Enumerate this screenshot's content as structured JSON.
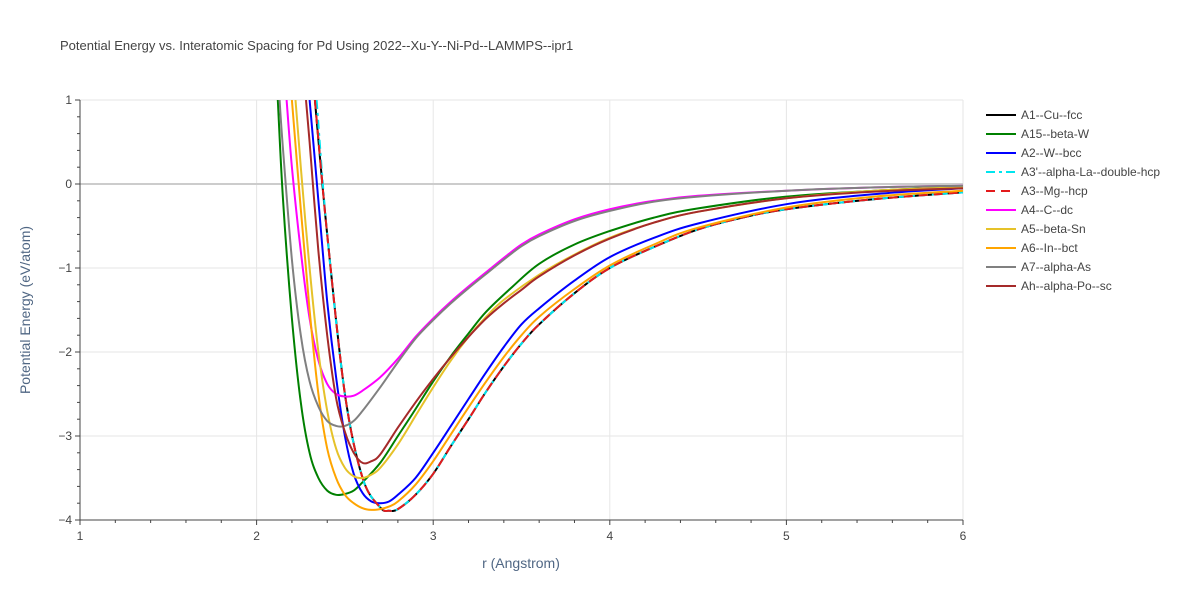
{
  "chart_data": {
    "type": "line",
    "title": "Potential Energy vs. Interatomic Spacing for Pd Using 2022--Xu-Y--Ni-Pd--LAMMPS--ipr1",
    "xlabel": "r (Angstrom)",
    "ylabel": "Potential Energy (eV/atom)",
    "xlim": [
      1,
      6
    ],
    "ylim": [
      -4,
      1
    ],
    "xticks": [
      1,
      2,
      3,
      4,
      5,
      6
    ],
    "yticks": [
      1,
      0,
      -1,
      -2,
      -3,
      -4
    ],
    "ytick_labels": [
      "1",
      "0",
      "−1",
      "−2",
      "−3",
      "−4"
    ],
    "grid": true,
    "legend_position": "right",
    "series": [
      {
        "name": "A1--Cu--fcc",
        "color": "#000000",
        "dash": "solid",
        "x": [
          2.33,
          2.4,
          2.5,
          2.6,
          2.7,
          2.75,
          2.8,
          2.9,
          3.0,
          3.1,
          3.2,
          3.3,
          3.4,
          3.5,
          3.6,
          3.8,
          4.0,
          4.25,
          4.5,
          4.75,
          5.0,
          5.5,
          6.0
        ],
        "y": [
          1.0,
          -0.6,
          -2.5,
          -3.5,
          -3.85,
          -3.89,
          -3.87,
          -3.7,
          -3.45,
          -3.12,
          -2.8,
          -2.47,
          -2.17,
          -1.9,
          -1.67,
          -1.3,
          -1.0,
          -0.75,
          -0.54,
          -0.4,
          -0.3,
          -0.18,
          -0.1
        ]
      },
      {
        "name": "A15--beta-W",
        "color": "#008000",
        "dash": "solid",
        "x": [
          2.12,
          2.15,
          2.2,
          2.25,
          2.3,
          2.35,
          2.4,
          2.45,
          2.5,
          2.55,
          2.6,
          2.7,
          2.8,
          2.9,
          3.0,
          3.1,
          3.2,
          3.3,
          3.45,
          3.6,
          3.8,
          4.0,
          4.25,
          4.5,
          5.0,
          5.5,
          6.0
        ],
        "y": [
          1.0,
          -0.2,
          -1.6,
          -2.6,
          -3.2,
          -3.5,
          -3.65,
          -3.7,
          -3.69,
          -3.65,
          -3.55,
          -3.32,
          -3.0,
          -2.68,
          -2.35,
          -2.05,
          -1.78,
          -1.52,
          -1.22,
          -0.95,
          -0.72,
          -0.56,
          -0.4,
          -0.29,
          -0.15,
          -0.08,
          -0.03
        ]
      },
      {
        "name": "A2--W--bcc",
        "color": "#0000ff",
        "dash": "solid",
        "x": [
          2.3,
          2.35,
          2.4,
          2.45,
          2.5,
          2.55,
          2.6,
          2.65,
          2.7,
          2.75,
          2.8,
          2.9,
          3.0,
          3.1,
          3.2,
          3.3,
          3.4,
          3.5,
          3.6,
          3.8,
          4.0,
          4.25,
          4.5,
          5.0,
          5.5,
          6.0
        ],
        "y": [
          1.0,
          -0.2,
          -1.4,
          -2.3,
          -3.0,
          -3.45,
          -3.68,
          -3.78,
          -3.8,
          -3.78,
          -3.7,
          -3.5,
          -3.2,
          -2.88,
          -2.56,
          -2.24,
          -1.94,
          -1.67,
          -1.48,
          -1.15,
          -0.87,
          -0.64,
          -0.47,
          -0.24,
          -0.12,
          -0.05
        ]
      },
      {
        "name": "A3'--alpha-La--double-hcp",
        "color": "#00e5ee",
        "dash": "dashdot",
        "x": [
          2.34,
          2.4,
          2.5,
          2.6,
          2.7,
          2.75,
          2.8,
          2.9,
          3.0,
          3.1,
          3.2,
          3.3,
          3.4,
          3.5,
          3.6,
          3.8,
          4.0,
          4.25,
          4.5,
          4.75,
          5.0,
          5.5,
          6.0
        ],
        "y": [
          1.0,
          -0.6,
          -2.5,
          -3.5,
          -3.85,
          -3.89,
          -3.87,
          -3.7,
          -3.45,
          -3.12,
          -2.8,
          -2.47,
          -2.17,
          -1.9,
          -1.67,
          -1.3,
          -1.0,
          -0.75,
          -0.54,
          -0.4,
          -0.3,
          -0.18,
          -0.1
        ]
      },
      {
        "name": "A3--Mg--hcp",
        "color": "#e31a1c",
        "dash": "dash",
        "x": [
          2.33,
          2.4,
          2.5,
          2.6,
          2.7,
          2.75,
          2.8,
          2.9,
          3.0,
          3.1,
          3.2,
          3.3,
          3.4,
          3.5,
          3.6,
          3.8,
          4.0,
          4.25,
          4.5,
          4.75,
          5.0,
          5.5,
          6.0
        ],
        "y": [
          1.0,
          -0.6,
          -2.5,
          -3.5,
          -3.85,
          -3.89,
          -3.87,
          -3.7,
          -3.45,
          -3.12,
          -2.8,
          -2.47,
          -2.17,
          -1.9,
          -1.67,
          -1.3,
          -1.0,
          -0.75,
          -0.54,
          -0.4,
          -0.3,
          -0.18,
          -0.1
        ]
      },
      {
        "name": "A4--C--dc",
        "color": "#ff00ff",
        "dash": "solid",
        "x": [
          2.17,
          2.2,
          2.25,
          2.3,
          2.35,
          2.4,
          2.45,
          2.5,
          2.55,
          2.6,
          2.7,
          2.8,
          2.9,
          3.0,
          3.1,
          3.2,
          3.3,
          3.4,
          3.5,
          3.6,
          3.8,
          4.0,
          4.25,
          4.5,
          5.0,
          5.5,
          6.0
        ],
        "y": [
          1.0,
          0.2,
          -0.8,
          -1.6,
          -2.1,
          -2.38,
          -2.5,
          -2.53,
          -2.52,
          -2.46,
          -2.3,
          -2.08,
          -1.82,
          -1.6,
          -1.4,
          -1.22,
          -1.05,
          -0.88,
          -0.72,
          -0.6,
          -0.42,
          -0.3,
          -0.2,
          -0.14,
          -0.08,
          -0.04,
          -0.02
        ]
      },
      {
        "name": "A5--beta-Sn",
        "color": "#e6c229",
        "dash": "solid",
        "x": [
          2.22,
          2.25,
          2.3,
          2.35,
          2.4,
          2.45,
          2.5,
          2.55,
          2.6,
          2.65,
          2.7,
          2.8,
          2.9,
          3.0,
          3.1,
          3.2,
          3.3,
          3.4,
          3.6,
          3.8,
          4.0,
          4.25,
          4.5,
          5.0,
          5.5,
          6.0
        ],
        "y": [
          1.0,
          0.2,
          -1.0,
          -2.0,
          -2.7,
          -3.15,
          -3.38,
          -3.48,
          -3.5,
          -3.46,
          -3.38,
          -3.1,
          -2.76,
          -2.42,
          -2.1,
          -1.82,
          -1.58,
          -1.38,
          -1.08,
          -0.84,
          -0.64,
          -0.46,
          -0.33,
          -0.17,
          -0.08,
          -0.04
        ]
      },
      {
        "name": "A6--In--bct",
        "color": "#ffa500",
        "dash": "solid",
        "x": [
          2.2,
          2.25,
          2.3,
          2.35,
          2.4,
          2.45,
          2.5,
          2.55,
          2.6,
          2.65,
          2.7,
          2.75,
          2.8,
          2.9,
          3.0,
          3.1,
          3.2,
          3.3,
          3.4,
          3.5,
          3.6,
          3.8,
          4.0,
          4.25,
          4.5,
          5.0,
          5.5,
          6.0
        ],
        "y": [
          1.0,
          -0.3,
          -1.5,
          -2.5,
          -3.15,
          -3.5,
          -3.7,
          -3.8,
          -3.86,
          -3.88,
          -3.87,
          -3.84,
          -3.78,
          -3.58,
          -3.3,
          -2.98,
          -2.66,
          -2.35,
          -2.06,
          -1.8,
          -1.58,
          -1.25,
          -0.97,
          -0.72,
          -0.52,
          -0.28,
          -0.15,
          -0.08
        ]
      },
      {
        "name": "A7--alpha-As",
        "color": "#808080",
        "dash": "solid",
        "x": [
          2.13,
          2.15,
          2.2,
          2.25,
          2.3,
          2.35,
          2.4,
          2.45,
          2.5,
          2.55,
          2.6,
          2.7,
          2.8,
          2.9,
          3.0,
          3.1,
          3.2,
          3.3,
          3.4,
          3.5,
          3.6,
          3.8,
          4.0,
          4.25,
          4.5,
          5.0,
          5.5,
          6.0
        ],
        "y": [
          1.0,
          0.4,
          -0.9,
          -1.8,
          -2.35,
          -2.65,
          -2.82,
          -2.88,
          -2.88,
          -2.82,
          -2.7,
          -2.42,
          -2.12,
          -1.84,
          -1.62,
          -1.42,
          -1.24,
          -1.07,
          -0.9,
          -0.74,
          -0.62,
          -0.44,
          -0.32,
          -0.21,
          -0.15,
          -0.08,
          -0.04,
          -0.02
        ]
      },
      {
        "name": "Ah--alpha-Po--sc",
        "color": "#a52a2a",
        "dash": "solid",
        "x": [
          2.28,
          2.3,
          2.35,
          2.4,
          2.45,
          2.5,
          2.55,
          2.6,
          2.65,
          2.7,
          2.8,
          2.9,
          3.0,
          3.1,
          3.2,
          3.3,
          3.4,
          3.5,
          3.6,
          3.8,
          4.0,
          4.25,
          4.5,
          5.0,
          5.5,
          6.0
        ],
        "y": [
          1.0,
          0.5,
          -0.8,
          -1.8,
          -2.55,
          -2.95,
          -3.2,
          -3.32,
          -3.3,
          -3.22,
          -2.9,
          -2.6,
          -2.32,
          -2.06,
          -1.82,
          -1.6,
          -1.42,
          -1.26,
          -1.1,
          -0.85,
          -0.65,
          -0.46,
          -0.33,
          -0.17,
          -0.09,
          -0.05
        ]
      }
    ]
  }
}
